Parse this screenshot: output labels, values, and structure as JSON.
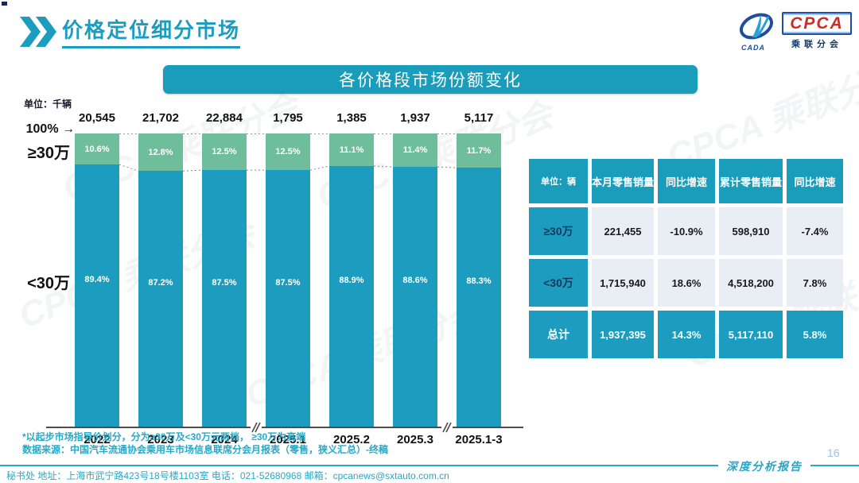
{
  "page": {
    "title": "价格定位细分市场",
    "page_number": "16"
  },
  "logo": {
    "cada": "CADA",
    "cpca": "CPCA",
    "subtitle": "乘联分会"
  },
  "banner": {
    "title": "各价格段市场份额变化"
  },
  "watermark": "CPCA 乘联分会",
  "chart_data": {
    "type": "bar",
    "subtype": "stacked-100-percent",
    "title": "各价格段市场份额变化",
    "unit_label": "单位：千辆",
    "y_axis_label": "100% →",
    "categories": [
      "2022",
      "2023",
      "2024",
      "2025.1",
      "2025.2",
      "2025.3",
      "2025.1-3"
    ],
    "totals_thousand_units": [
      "20,545",
      "21,702",
      "22,884",
      "1,795",
      "1,385",
      "1,937",
      "5,117"
    ],
    "series": [
      {
        "name": "≥30万",
        "color": "#6FBE9B",
        "values": [
          10.6,
          12.8,
          12.5,
          12.5,
          11.1,
          11.4,
          11.7
        ]
      },
      {
        "name": "<30万",
        "color": "#1C9DBF",
        "values": [
          89.4,
          87.2,
          87.5,
          87.5,
          88.9,
          88.6,
          88.3
        ]
      }
    ],
    "axis_break_after": [
      "2024",
      "2025.3"
    ],
    "ylim": [
      0,
      100
    ],
    "grid": false,
    "legend_position": "left-inline"
  },
  "table": {
    "unit_header": "单位：辆",
    "headers": [
      "本月零售销量",
      "同比增速",
      "累计零售销量",
      "同比增速"
    ],
    "rows": [
      {
        "label": "≥30万",
        "values": [
          "221,455",
          "-10.9%",
          "598,910",
          "-7.4%"
        ],
        "is_total": false
      },
      {
        "label": "<30万",
        "values": [
          "1,715,940",
          "18.6%",
          "4,518,200",
          "7.8%"
        ],
        "is_total": false
      },
      {
        "label": "总计",
        "values": [
          "1,937,395",
          "14.3%",
          "5,117,110",
          "5.8%"
        ],
        "is_total": true
      }
    ]
  },
  "footnotes": [
    "*以起步市场指导价划分，分为≥30万及<30万元两档， ≥30万为高端",
    "数据来源：中国汽车流通协会乘用车市场信息联席分会月报表（零售，狭义汇总）-终稿"
  ],
  "footer": {
    "address": "秘书处  地址：上海市武宁路423号18号楼1103室 电话：021-52680968  邮箱：cpcanews@sxtauto.com.cn",
    "report_type": "深度分析报告"
  },
  "colors": {
    "teal_bar": "#1C9DBF",
    "green_bar": "#6FBE9B",
    "banner_teal": "#1A9CBB",
    "table_light_cell": "#E9EDF4",
    "row_label_text": "#17375E",
    "footnote_teal": "#29A8C6",
    "page_number_blue": "#9DC3E6",
    "cpca_red": "#CF2B24",
    "logo_blue": "#1F4E9C"
  }
}
